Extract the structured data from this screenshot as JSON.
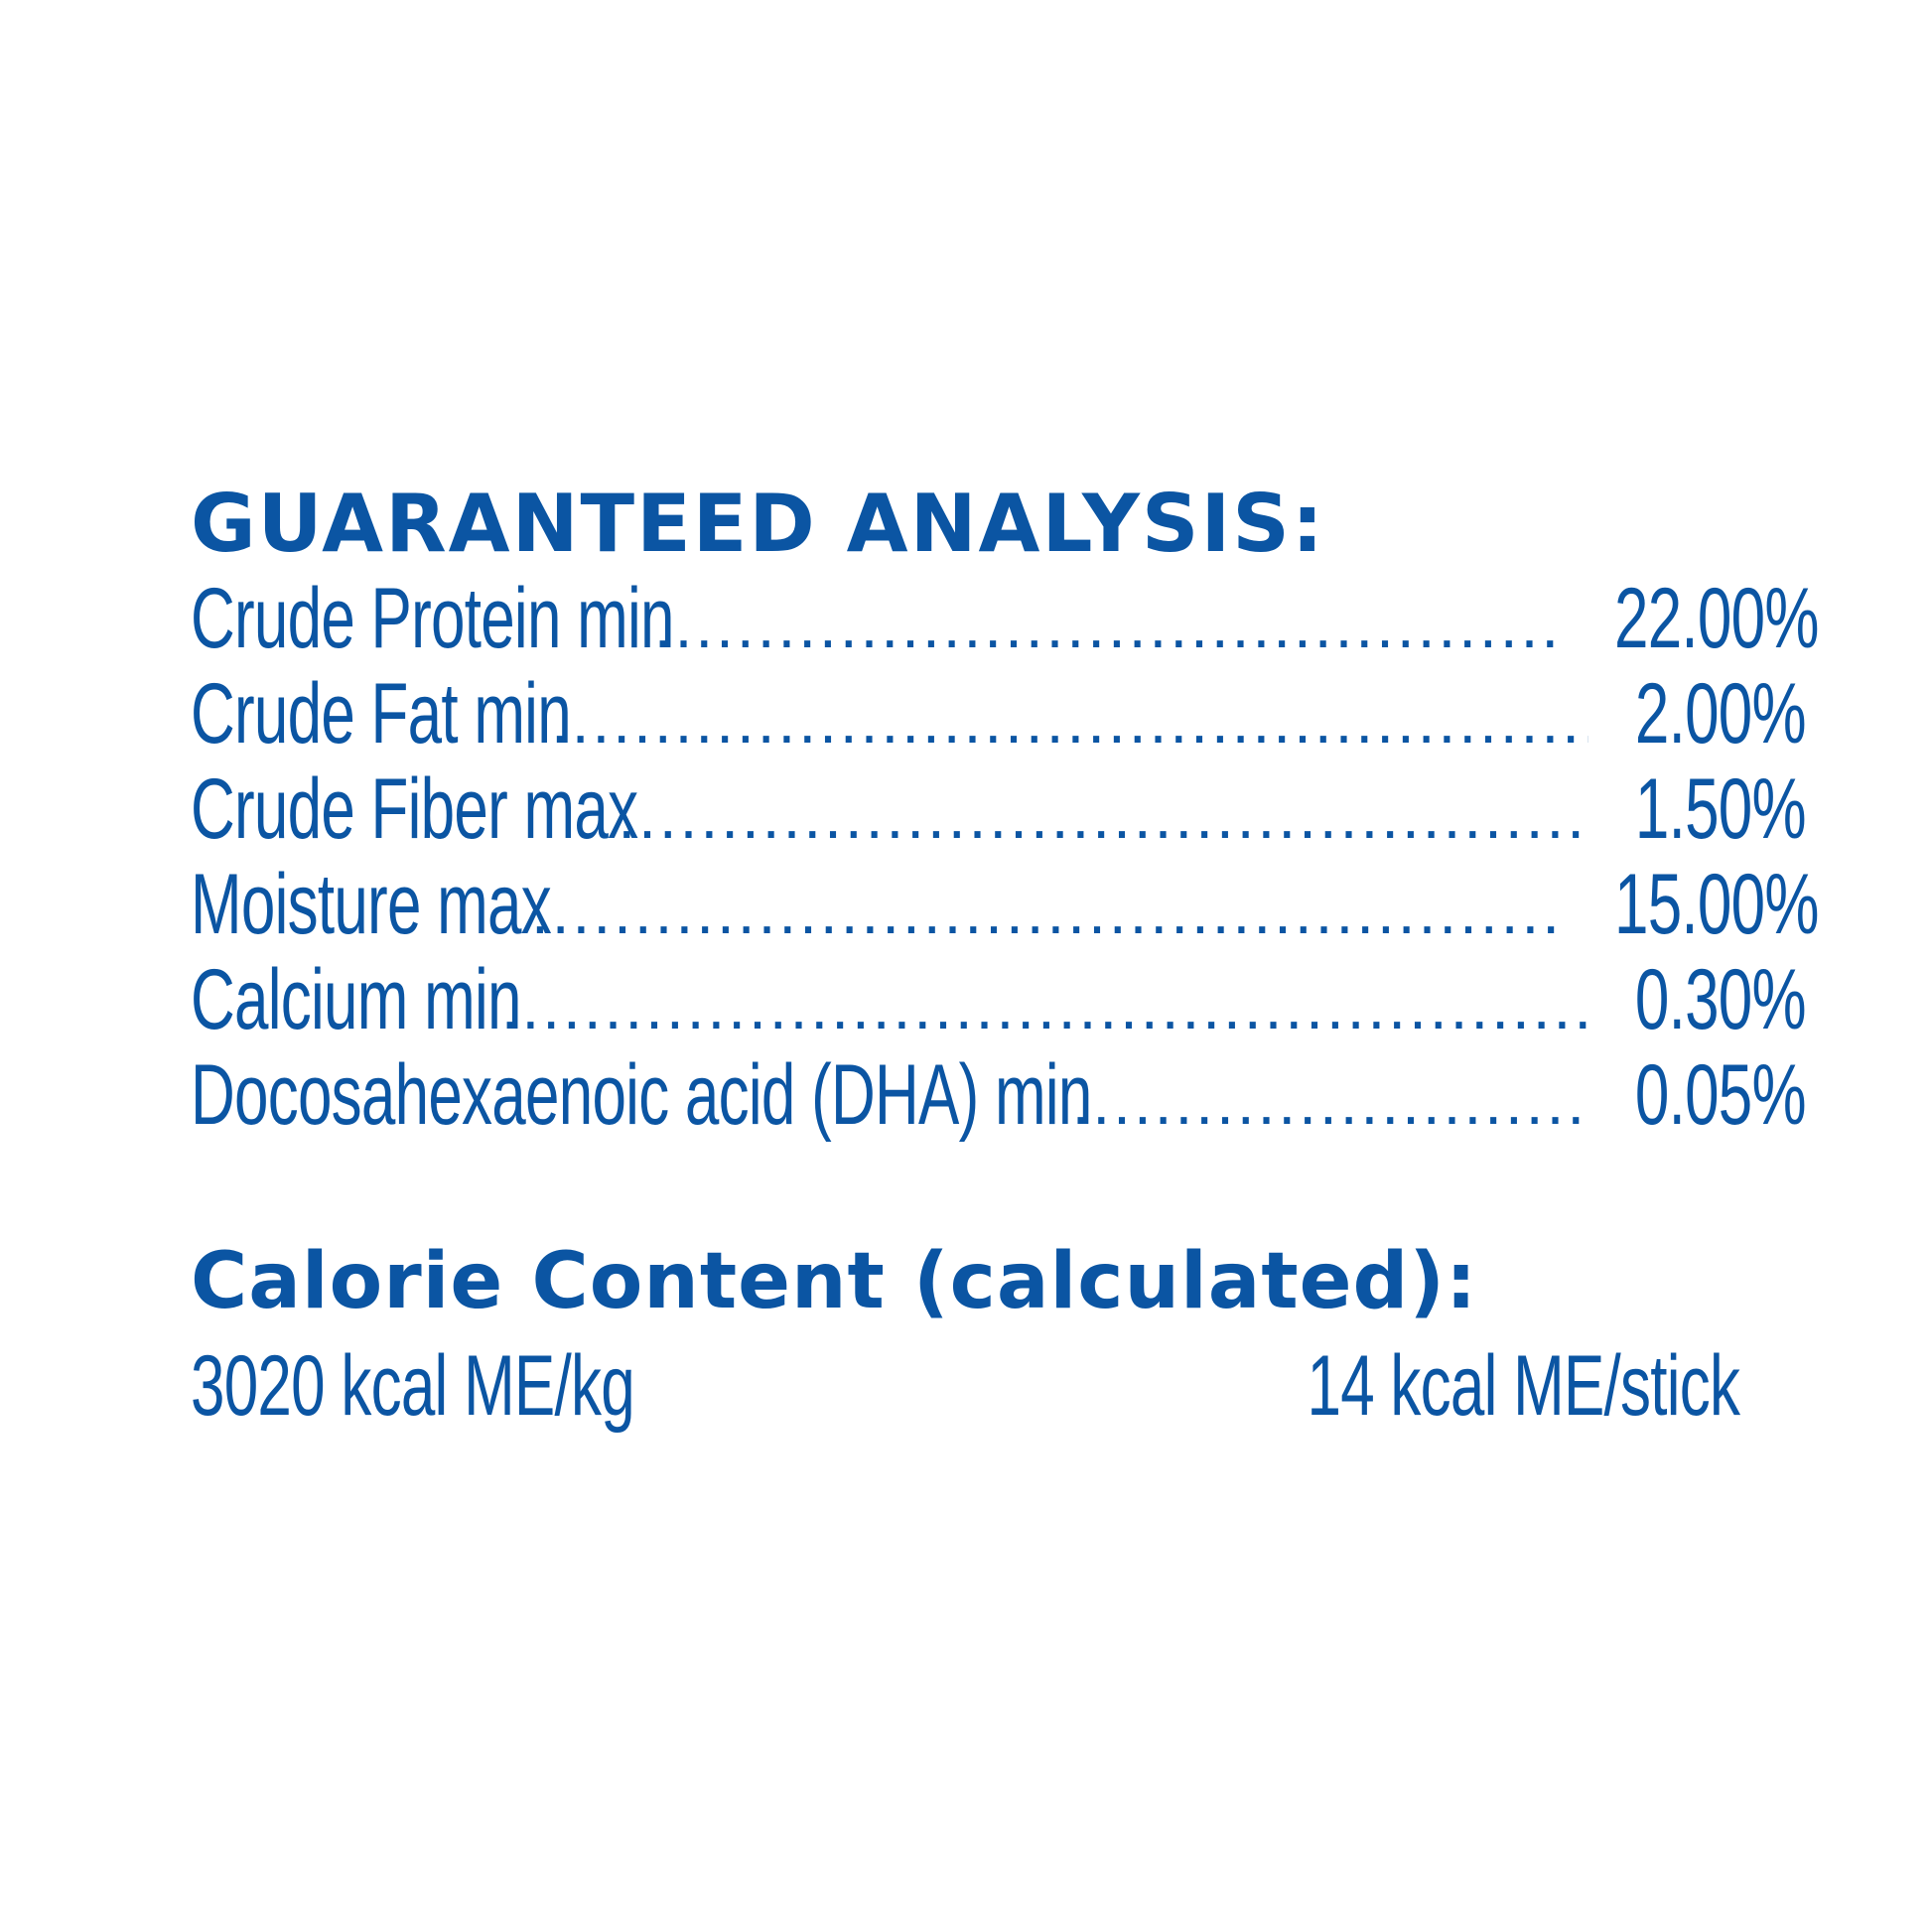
{
  "color": "#0b55a3",
  "heading": "GUARANTEED ANALYSIS:",
  "rows": [
    {
      "label": "Crude Protein min",
      "value": "22.00%"
    },
    {
      "label": "Crude Fat  min",
      "value": "2.00%"
    },
    {
      "label": "Crude Fiber max",
      "value": "1.50%"
    },
    {
      "label": "Moisture max",
      "value": "15.00%"
    },
    {
      "label": "Calcium min",
      "value": "0.30%"
    },
    {
      "label": "Docosahexaenoic acid (DHA) min",
      "value": "0.05%"
    }
  ],
  "calorie": {
    "heading": "Calorie Content (calculated):",
    "per_kg": "3020 kcal ME/kg",
    "per_stick": "14 kcal ME/stick"
  }
}
